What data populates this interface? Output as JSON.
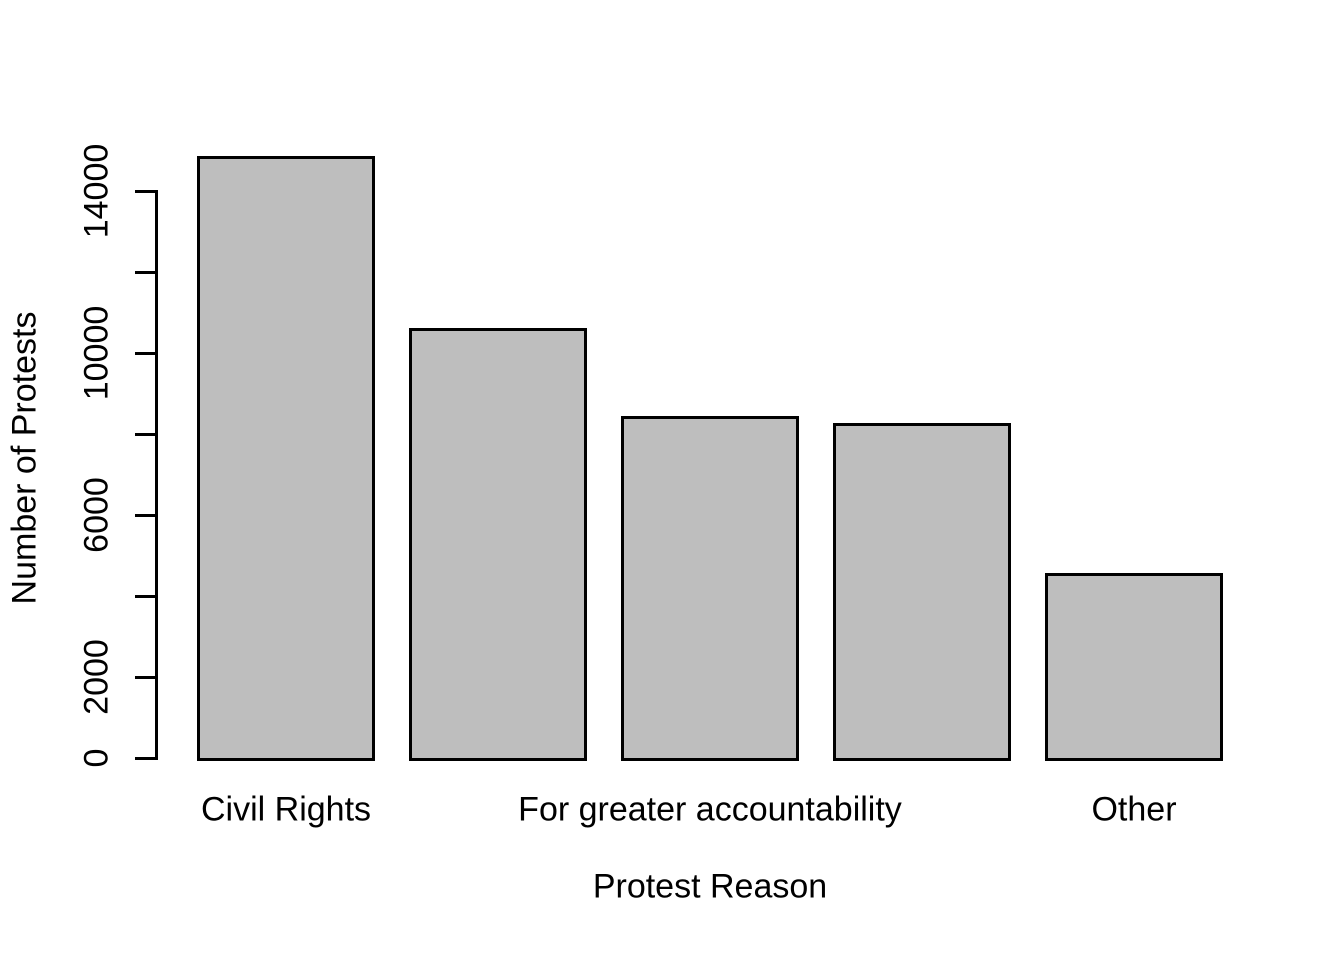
{
  "chart_data": {
    "type": "bar",
    "title": "",
    "xlabel": "Protest Reason",
    "ylabel": "Number of Protests",
    "categories": [
      "Civil Rights",
      "For greater accountability",
      "Other"
    ],
    "values": [
      14856,
      10627,
      8437,
      8271,
      4578
    ],
    "x_tick_labels": [
      {
        "text": "Civil Rights",
        "bar_index": 0
      },
      {
        "text": "For greater accountability",
        "bar_index": 2
      },
      {
        "text": "Other",
        "bar_index": 4
      }
    ],
    "ylim": [
      0,
      14000
    ],
    "y_ticks": [
      0,
      2000,
      4000,
      6000,
      8000,
      10000,
      12000,
      14000
    ],
    "y_tick_labels_shown": [
      "0",
      "2000",
      "6000",
      "10000",
      "14000"
    ],
    "grid": false,
    "legend": false,
    "bar_fill_color": "#bebebe",
    "bar_border_color": "#000000",
    "text_color": "#000000",
    "background_color": "#ffffff"
  }
}
